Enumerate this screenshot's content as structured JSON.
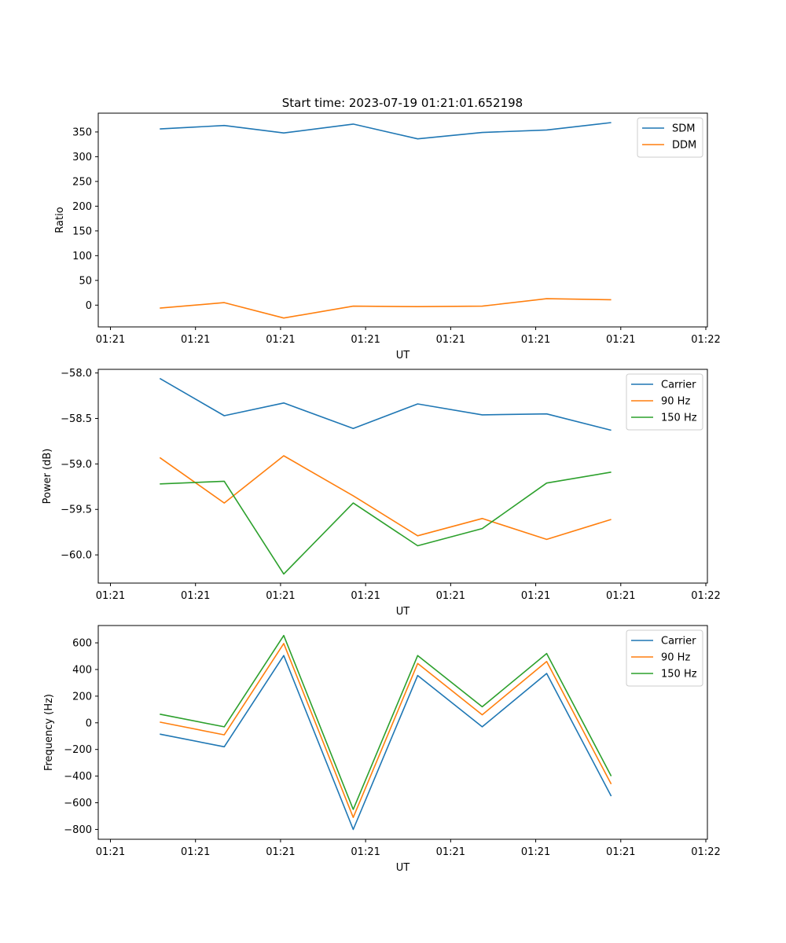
{
  "figure_title": "Start time: 2023-07-19 01:21:01.652198",
  "colors": {
    "blue": "#1f77b4",
    "orange": "#ff7f0e",
    "green": "#2ca02c",
    "axis": "#000000",
    "legend_border": "#cccccc"
  },
  "chart_data": [
    {
      "type": "line",
      "title": "Start time: 2023-07-19 01:21:01.652198",
      "xlabel": "UT",
      "ylabel": "Ratio",
      "x_tick_labels": [
        "01:21",
        "01:21",
        "01:21",
        "01:21",
        "01:21",
        "01:21",
        "01:21",
        "01:22"
      ],
      "x": [
        0.5,
        1.15,
        1.75,
        2.45,
        3.1,
        3.75,
        4.4,
        5.05
      ],
      "xlim": [
        -0.12,
        6.02
      ],
      "ylim": [
        -44,
        388
      ],
      "yticks": [
        0,
        50,
        100,
        150,
        200,
        250,
        300,
        350
      ],
      "ytick_labels": [
        "0",
        "50",
        "100",
        "150",
        "200",
        "250",
        "300",
        "350"
      ],
      "legend_location": "upper right",
      "series": [
        {
          "name": "SDM",
          "color_key": "blue",
          "values": [
            356,
            363,
            348,
            366,
            336,
            349,
            354,
            369
          ]
        },
        {
          "name": "DDM",
          "color_key": "orange",
          "values": [
            -6,
            5,
            -26,
            -2,
            -3,
            -2,
            13,
            11
          ]
        }
      ]
    },
    {
      "type": "line",
      "xlabel": "UT",
      "ylabel": "Power (dB)",
      "x_tick_labels": [
        "01:21",
        "01:21",
        "01:21",
        "01:21",
        "01:21",
        "01:21",
        "01:21",
        "01:22"
      ],
      "x": [
        0.5,
        1.15,
        1.75,
        2.45,
        3.1,
        3.75,
        4.4,
        5.05
      ],
      "xlim": [
        -0.12,
        6.02
      ],
      "ylim": [
        -60.31,
        -57.96
      ],
      "yticks": [
        -60.0,
        -59.5,
        -59.0,
        -58.5,
        -58.0
      ],
      "ytick_labels": [
        "−60.0",
        "−59.5",
        "−59.0",
        "−58.5",
        "−58.0"
      ],
      "legend_location": "upper right",
      "series": [
        {
          "name": "Carrier",
          "color_key": "blue",
          "values": [
            -58.06,
            -58.47,
            -58.33,
            -58.61,
            -58.34,
            -58.46,
            -58.45,
            -58.63
          ]
        },
        {
          "name": "90 Hz",
          "color_key": "orange",
          "values": [
            -58.93,
            -59.43,
            -58.91,
            -59.35,
            -59.79,
            -59.6,
            -59.83,
            -59.61
          ]
        },
        {
          "name": "150 Hz",
          "color_key": "green",
          "values": [
            -59.22,
            -59.19,
            -60.21,
            -59.43,
            -59.9,
            -59.71,
            -59.21,
            -59.09
          ]
        }
      ]
    },
    {
      "type": "line",
      "xlabel": "UT",
      "ylabel": "Frequency (Hz)",
      "x_tick_labels": [
        "01:21",
        "01:21",
        "01:21",
        "01:21",
        "01:21",
        "01:21",
        "01:21",
        "01:22"
      ],
      "x": [
        0.5,
        1.15,
        1.75,
        2.45,
        3.1,
        3.75,
        4.4,
        5.05
      ],
      "xlim": [
        -0.12,
        6.02
      ],
      "ylim": [
        -874,
        730
      ],
      "yticks": [
        -800,
        -600,
        -400,
        -200,
        0,
        200,
        400,
        600
      ],
      "ytick_labels": [
        "−800",
        "−600",
        "−400",
        "−200",
        "0",
        "200",
        "400",
        "600"
      ],
      "legend_location": "upper right",
      "series": [
        {
          "name": "Carrier",
          "color_key": "blue",
          "values": [
            -85,
            -180,
            505,
            -800,
            355,
            -30,
            370,
            -550
          ]
        },
        {
          "name": "90 Hz",
          "color_key": "orange",
          "values": [
            5,
            -90,
            595,
            -710,
            445,
            60,
            460,
            -460
          ]
        },
        {
          "name": "150 Hz",
          "color_key": "green",
          "values": [
            65,
            -30,
            655,
            -650,
            505,
            120,
            520,
            -400
          ]
        }
      ]
    }
  ]
}
